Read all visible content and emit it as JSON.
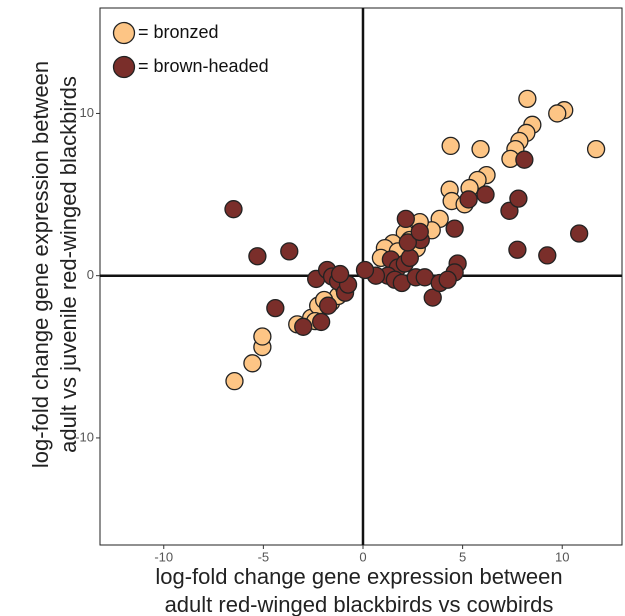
{
  "chart_data": {
    "type": "scatter",
    "xlabel": [
      "log-fold change gene expression between",
      "adult red-winged blackbirds vs cowbirds"
    ],
    "ylabel": [
      "log-fold change gene expression between",
      "adult vs juvenile red-winged blackbirds"
    ],
    "xlim": [
      -13.2,
      13
    ],
    "ylim": [
      -16.6,
      16.5
    ],
    "xticks": [
      -10,
      -5,
      0,
      5,
      10
    ],
    "yticks": [
      -10,
      0,
      10
    ],
    "legend": "top-left",
    "series": [
      {
        "name": "= bronzed",
        "color": "#fdc585",
        "x": [
          8.25,
          10.1,
          9.75,
          8.5,
          8.2,
          7.85,
          7.65,
          7.4,
          11.7,
          4.4,
          5.9,
          6.2,
          5.75,
          5.35,
          4.35,
          4.45,
          5.1,
          3.85,
          3.45,
          2.85,
          2.1,
          1.5,
          1.1,
          0.9,
          1.75,
          2.35,
          2.7,
          -6.45,
          -5.55,
          -5.05,
          -5.05,
          -3.3,
          -2.6,
          -2.25,
          -1.6,
          -1.25,
          -1.95,
          -0.95,
          -2.4
        ],
        "y": [
          10.9,
          10.2,
          10,
          9.3,
          8.8,
          8.3,
          7.8,
          7.2,
          7.8,
          8.0,
          7.8,
          6.2,
          5.9,
          5.4,
          5.3,
          4.6,
          4.4,
          3.5,
          2.8,
          3.3,
          2.65,
          2.0,
          1.7,
          1.1,
          1.5,
          2.2,
          1.7,
          -6.5,
          -5.4,
          -4.4,
          -3.75,
          -3.0,
          -2.6,
          -1.85,
          -1.65,
          -1.25,
          -1.5,
          -0.75,
          -2.8
        ]
      },
      {
        "name": "= brown-headed",
        "color": "#7a2e2a",
        "x": [
          -6.5,
          -5.3,
          -3.7,
          -4.4,
          -3.0,
          -2.1,
          -1.75,
          -2.35,
          -1.8,
          -1.55,
          -1.25,
          -0.9,
          -0.75,
          -1.15,
          8.1,
          7.35,
          7.8,
          6.15,
          5.3,
          4.6,
          7.75,
          9.25,
          10.85,
          2.15,
          2.9,
          1.4,
          1.75,
          2.1,
          2.35,
          1.25,
          1.6,
          1.95,
          2.65,
          3.1,
          3.5,
          4.75,
          4.6,
          3.85,
          4.25,
          0.65,
          0.1,
          2.25,
          2.85
        ],
        "y": [
          4.1,
          1.2,
          1.5,
          -2.0,
          -3.15,
          -2.85,
          -1.85,
          -0.2,
          0.35,
          -0.05,
          -0.35,
          -1.05,
          -0.55,
          0.1,
          7.15,
          4.0,
          4.75,
          5.0,
          4.7,
          2.9,
          1.6,
          1.25,
          2.6,
          3.5,
          2.2,
          1.0,
          0.5,
          0.75,
          1.1,
          0,
          -0.25,
          -0.45,
          -0.1,
          -0.1,
          -1.35,
          0.75,
          0.2,
          -0.45,
          -0.25,
          0,
          0.35,
          2.05,
          2.7
        ]
      }
    ]
  }
}
